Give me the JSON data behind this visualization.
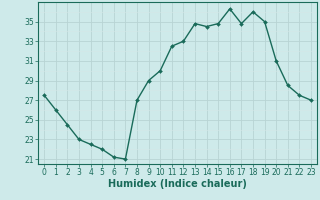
{
  "x": [
    0,
    1,
    2,
    3,
    4,
    5,
    6,
    7,
    8,
    9,
    10,
    11,
    12,
    13,
    14,
    15,
    16,
    17,
    18,
    19,
    20,
    21,
    22,
    23
  ],
  "y": [
    27.5,
    26.0,
    24.5,
    23.0,
    22.5,
    22.0,
    21.2,
    21.0,
    27.0,
    29.0,
    30.0,
    32.5,
    33.0,
    34.8,
    34.5,
    34.8,
    36.3,
    34.8,
    36.0,
    35.0,
    31.0,
    28.5,
    27.5,
    27.0
  ],
  "line_color": "#1a6b5a",
  "marker": "D",
  "marker_size": 2.0,
  "bg_color": "#ceeaea",
  "grid_major_color": "#b8d4d4",
  "grid_minor_color": "#d4e8e8",
  "xlabel": "Humidex (Indice chaleur)",
  "xlim": [
    -0.5,
    23.5
  ],
  "ylim": [
    20.5,
    37.0
  ],
  "yticks": [
    21,
    23,
    25,
    27,
    29,
    31,
    33,
    35
  ],
  "xticks": [
    0,
    1,
    2,
    3,
    4,
    5,
    6,
    7,
    8,
    9,
    10,
    11,
    12,
    13,
    14,
    15,
    16,
    17,
    18,
    19,
    20,
    21,
    22,
    23
  ],
  "tick_fontsize": 5.5,
  "label_fontsize": 7.0,
  "line_width": 1.0
}
